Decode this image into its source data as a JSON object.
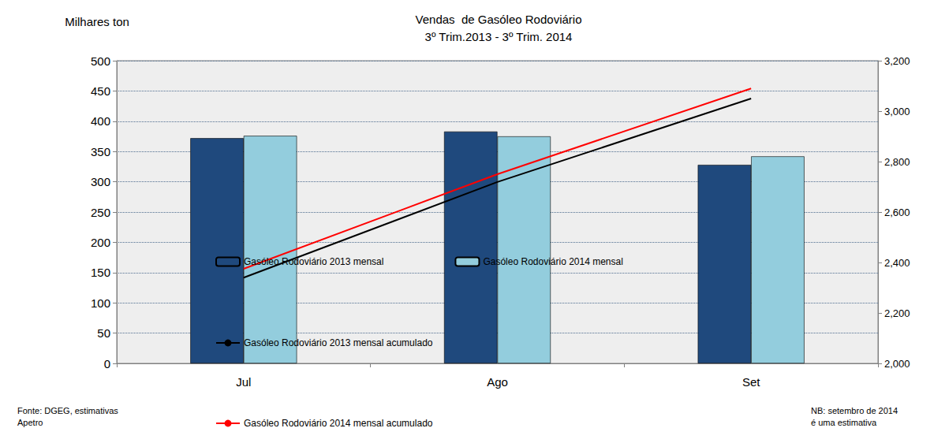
{
  "chart_data": {
    "type": "bar",
    "title": "Vendas  de Gasóleo Rodoviário\n3º Trim.2013 - 3º Trim. 2014",
    "ylabel": "Milhares ton",
    "categories": [
      "Jul",
      "Ago",
      "Set"
    ],
    "series": [
      {
        "name": "Gasóleo Rodoviário 2013 mensal",
        "type": "bar",
        "color": "#1f497d",
        "values": [
          372,
          383,
          328
        ]
      },
      {
        "name": "Gasóleo Rodoviário 2014 mensal",
        "type": "bar",
        "color": "#93cddd",
        "values": [
          376,
          375,
          342
        ]
      },
      {
        "name": "Gasóleo Rodoviário 2013 mensal acumulado",
        "type": "line",
        "axis": "y2",
        "color": "#000000",
        "values": [
          2340,
          2719,
          3050
        ]
      },
      {
        "name": "Gasóleo Rodoviário 2014 mensal acumulado",
        "type": "line",
        "axis": "y2",
        "color": "#ff0000",
        "values": [
          2375,
          2750,
          3090
        ]
      }
    ],
    "ylim": [
      0,
      500
    ],
    "yticks": [
      0,
      50,
      100,
      150,
      200,
      250,
      300,
      350,
      400,
      450,
      500
    ],
    "y2lim": [
      2000,
      3200
    ],
    "y2ticks": [
      2000,
      2200,
      2400,
      2600,
      2800,
      3000,
      3200
    ],
    "grid": true,
    "legend": "bottom",
    "annotations": [
      "Fonte: DGEG, estimativas\nApetro",
      "NB: setembro de 2014\né uma estimativa"
    ]
  }
}
